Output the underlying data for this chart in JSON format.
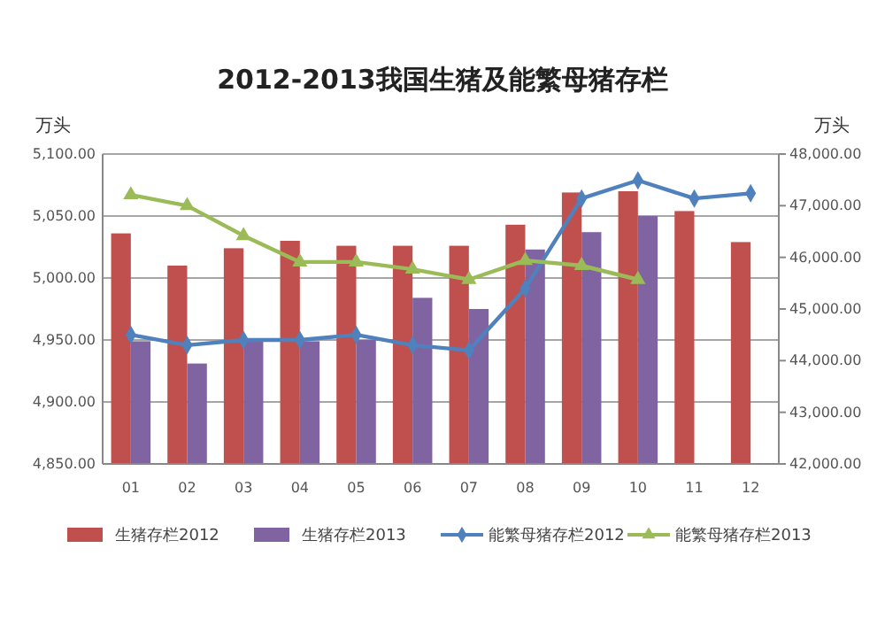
{
  "chart_data": {
    "type": "bar",
    "title": "2012-2013我国生猪及能繁母猪存栏",
    "ylabel": "万头",
    "y2label": "万头",
    "categories": [
      "01",
      "02",
      "03",
      "04",
      "05",
      "06",
      "07",
      "08",
      "09",
      "10",
      "11",
      "12"
    ],
    "series": [
      {
        "name": "生猪存栏2012",
        "color": "#c0504d",
        "values": [
          5036,
          5010,
          5024,
          5030,
          5026,
          5026,
          5026,
          5043,
          5069,
          5070,
          5054,
          5029
        ]
      },
      {
        "name": "生猪存栏2013",
        "color": "#8064a2",
        "values": [
          4949,
          4931,
          4949,
          4949,
          4950,
          4984,
          4975,
          5023,
          5037,
          5050,
          null,
          null
        ]
      },
      {
        "name": "能繁母猪存栏2012",
        "type": "line",
        "axis": "y2",
        "marker": "diamond",
        "color": "#4f81bd",
        "values": [
          44500,
          44300,
          44400,
          44400,
          44500,
          44300,
          44200,
          45400,
          47140,
          47490,
          47140,
          47240
        ]
      },
      {
        "name": "能繁母猪存栏2013",
        "type": "line",
        "axis": "y2",
        "marker": "triangle",
        "color": "#9bbb59",
        "values": [
          47210,
          47000,
          46420,
          45910,
          45910,
          45770,
          45570,
          45940,
          45840,
          45570,
          null,
          null
        ]
      }
    ],
    "ylim": [
      4850,
      5100
    ],
    "yticks": [
      {
        "value": 4850,
        "label": "4,850.00"
      },
      {
        "value": 4900,
        "label": "4,900.00"
      },
      {
        "value": 4950,
        "label": "4,950.00"
      },
      {
        "value": 5000,
        "label": "5,000.00"
      },
      {
        "value": 5050,
        "label": "5,050.00"
      },
      {
        "value": 5100,
        "label": "5,100.00"
      }
    ],
    "y2lim": [
      42000,
      48000
    ],
    "y2ticks": [
      {
        "value": 42000,
        "label": "42,000.00"
      },
      {
        "value": 43000,
        "label": "43,000.00"
      },
      {
        "value": 44000,
        "label": "44,000.00"
      },
      {
        "value": 45000,
        "label": "45,000.00"
      },
      {
        "value": 46000,
        "label": "46,000.00"
      },
      {
        "value": 47000,
        "label": "47,000.00"
      },
      {
        "value": 48000,
        "label": "48,000.00"
      }
    ],
    "grid": "y",
    "legend": "bottom"
  }
}
